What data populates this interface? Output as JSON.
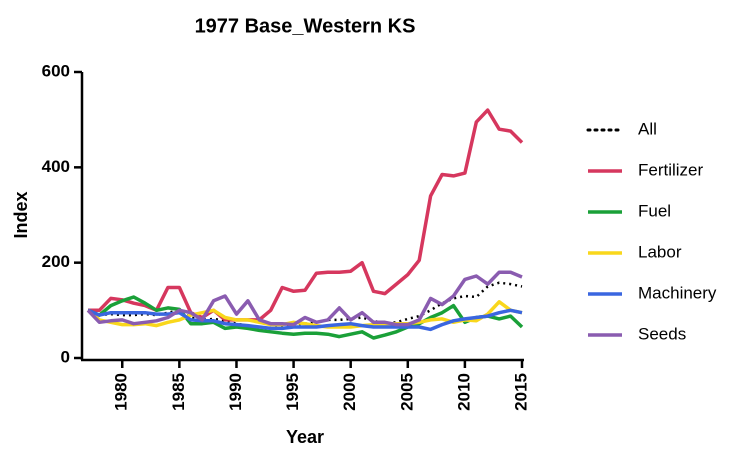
{
  "chart_data": {
    "type": "line",
    "title": "1977 Base_Western KS",
    "x_label": "Year",
    "y_label": "Index",
    "x": [
      1977,
      1978,
      1979,
      1980,
      1981,
      1982,
      1983,
      1984,
      1985,
      1986,
      1987,
      1988,
      1989,
      1990,
      1991,
      1992,
      1993,
      1994,
      1995,
      1996,
      1997,
      1998,
      1999,
      2000,
      2001,
      2002,
      2003,
      2004,
      2005,
      2006,
      2007,
      2008,
      2009,
      2010,
      2011,
      2012,
      2013,
      2014,
      2015
    ],
    "xlim": [
      1977,
      2015
    ],
    "xticks": [
      1980,
      1985,
      1990,
      1995,
      2000,
      2005,
      2010,
      2015
    ],
    "ylim": [
      0,
      600
    ],
    "yticks": [
      0,
      200,
      400,
      600
    ],
    "series": [
      {
        "name": "All",
        "color": "#000000",
        "style": "dotted",
        "values": [
          100,
          90,
          92,
          90,
          90,
          92,
          90,
          95,
          100,
          85,
          80,
          82,
          78,
          72,
          68,
          65,
          63,
          65,
          70,
          72,
          75,
          80,
          80,
          82,
          85,
          78,
          72,
          75,
          82,
          88,
          100,
          115,
          125,
          130,
          128,
          150,
          158,
          155,
          150
        ]
      },
      {
        "name": "Fertilizer",
        "color": "#d6375e",
        "style": "solid",
        "values": [
          100,
          100,
          125,
          122,
          115,
          110,
          100,
          148,
          148,
          95,
          85,
          100,
          80,
          80,
          80,
          80,
          100,
          148,
          140,
          142,
          178,
          180,
          180,
          182,
          200,
          140,
          135,
          155,
          175,
          205,
          340,
          385,
          382,
          388,
          495,
          520,
          480,
          476,
          452
        ]
      },
      {
        "name": "Fuel",
        "color": "#1aa038",
        "style": "solid",
        "values": [
          100,
          90,
          110,
          120,
          128,
          115,
          100,
          105,
          102,
          72,
          72,
          75,
          62,
          65,
          62,
          58,
          55,
          52,
          50,
          52,
          52,
          50,
          45,
          50,
          55,
          42,
          48,
          55,
          65,
          72,
          85,
          95,
          110,
          75,
          85,
          88,
          82,
          88,
          65
        ]
      },
      {
        "name": "Labor",
        "color": "#f9d71c",
        "style": "solid",
        "values": [
          100,
          80,
          75,
          70,
          70,
          72,
          68,
          75,
          80,
          90,
          95,
          100,
          85,
          80,
          80,
          75,
          70,
          70,
          75,
          72,
          68,
          65,
          65,
          65,
          68,
          70,
          72,
          72,
          72,
          75,
          80,
          82,
          75,
          80,
          78,
          92,
          118,
          100,
          95
        ]
      },
      {
        "name": "Machinery",
        "color": "#3a66e0",
        "style": "solid",
        "values": [
          100,
          90,
          95,
          95,
          95,
          95,
          92,
          92,
          95,
          80,
          78,
          78,
          72,
          70,
          68,
          65,
          62,
          62,
          65,
          65,
          65,
          68,
          70,
          72,
          68,
          65,
          65,
          65,
          65,
          65,
          60,
          70,
          78,
          82,
          85,
          88,
          95,
          100,
          95
        ]
      },
      {
        "name": "Seeds",
        "color": "#8a5cb0",
        "style": "solid",
        "values": [
          100,
          75,
          78,
          80,
          72,
          75,
          78,
          85,
          100,
          95,
          80,
          120,
          130,
          92,
          120,
          80,
          72,
          72,
          70,
          85,
          75,
          80,
          105,
          80,
          95,
          75,
          75,
          70,
          70,
          80,
          125,
          112,
          130,
          165,
          172,
          155,
          180,
          180,
          170
        ]
      }
    ]
  }
}
